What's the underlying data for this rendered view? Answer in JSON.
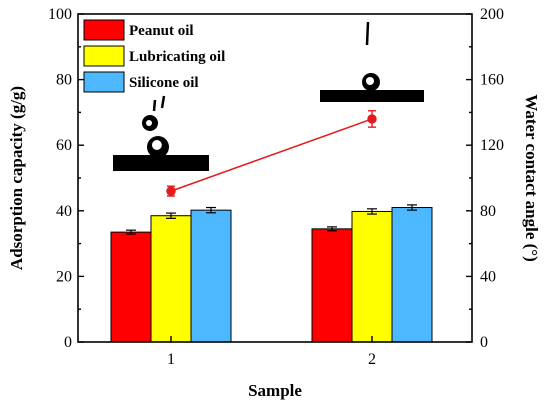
{
  "chart_data": {
    "type": "bar",
    "xlabel": "Sample",
    "ylabel_left": "Adsorption capacity (g/g)",
    "ylabel_right": "Water contact angle (°)",
    "categories": [
      "1",
      "2"
    ],
    "ylim_left": [
      0,
      100
    ],
    "yticks_left": [
      "0",
      "20",
      "40",
      "60",
      "80",
      "100"
    ],
    "ylim_right": [
      0,
      200
    ],
    "yticks_right": [
      "0",
      "40",
      "80",
      "120",
      "160",
      "200"
    ],
    "series": [
      {
        "name": "Peanut oil",
        "color": "#ff0000",
        "values": [
          33.5,
          34.5
        ],
        "errors": [
          0.6,
          0.6
        ]
      },
      {
        "name": "Lubricating oil",
        "color": "#ffff00",
        "values": [
          38.5,
          39.8
        ],
        "errors": [
          0.8,
          0.8
        ]
      },
      {
        "name": "Silicone oil",
        "color": "#4db8ff",
        "values": [
          40.2,
          41.0
        ],
        "errors": [
          0.8,
          0.8
        ]
      }
    ],
    "contact_angle": {
      "color": "#e41a1c",
      "values": [
        92,
        136
      ],
      "errors": [
        3,
        5
      ]
    },
    "legend_position": "top-left"
  }
}
